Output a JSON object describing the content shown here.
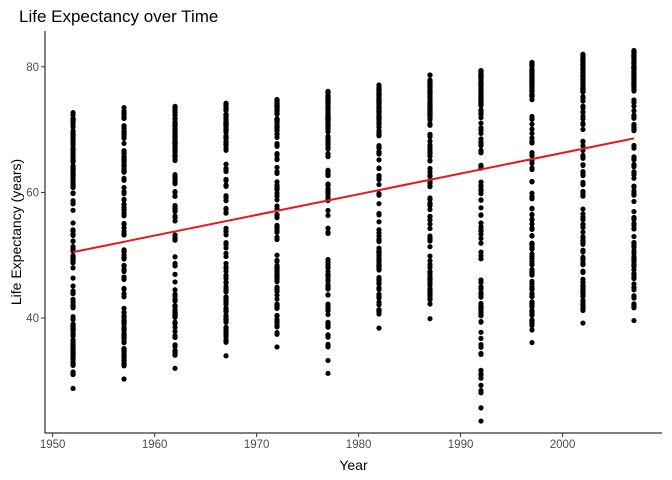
{
  "chart_data": {
    "type": "scatter",
    "title": "Life Expectancy over Time",
    "xlabel": "Year",
    "ylabel": "Life Expectancy (years)",
    "xlim": [
      1949.25,
      2009.75
    ],
    "ylim": [
      21.7,
      85.7
    ],
    "x_ticks": [
      1950,
      1960,
      1970,
      1980,
      1990,
      2000
    ],
    "y_ticks": [
      40,
      60,
      80
    ],
    "grid": false,
    "point_color": "#000000",
    "trend_color": "#e41a1c",
    "columns": [
      {
        "x": 1952,
        "min": 28.8,
        "max": 72.7,
        "q1": 39.1,
        "median": 45.1,
        "q3": 59.8
      },
      {
        "x": 1957,
        "min": 30.3,
        "max": 73.5,
        "q1": 41.2,
        "median": 48.4,
        "q3": 63.0
      },
      {
        "x": 1962,
        "min": 32.0,
        "max": 73.7,
        "q1": 43.5,
        "median": 48.7,
        "q3": 65.5
      },
      {
        "x": 1967,
        "min": 34.0,
        "max": 74.2,
        "q1": 46.0,
        "median": 53.8,
        "q3": 67.4
      },
      {
        "x": 1972,
        "min": 35.4,
        "max": 74.8,
        "q1": 48.0,
        "median": 56.5,
        "q3": 69.2
      },
      {
        "x": 1977,
        "min": 31.2,
        "max": 76.1,
        "q1": 50.0,
        "median": 59.7,
        "q3": 70.4
      },
      {
        "x": 1982,
        "min": 38.4,
        "max": 77.1,
        "q1": 51.6,
        "median": 62.4,
        "q3": 70.8
      },
      {
        "x": 1987,
        "min": 39.9,
        "max": 78.7,
        "q1": 53.4,
        "median": 65.8,
        "q3": 71.7
      },
      {
        "x": 1992,
        "min": 23.6,
        "max": 79.4,
        "q1": 52.1,
        "median": 67.7,
        "q3": 73.6
      },
      {
        "x": 1997,
        "min": 36.1,
        "max": 80.7,
        "q1": 51.6,
        "median": 69.4,
        "q3": 75.2
      },
      {
        "x": 2002,
        "min": 39.2,
        "max": 82.0,
        "q1": 51.0,
        "median": 70.8,
        "q3": 75.9
      },
      {
        "x": 2007,
        "min": 39.6,
        "max": 82.6,
        "q1": 56.0,
        "median": 71.9,
        "q3": 76.4
      }
    ],
    "trend_line": {
      "x": [
        1952,
        2007
      ],
      "y": [
        50.5,
        68.6
      ]
    }
  }
}
